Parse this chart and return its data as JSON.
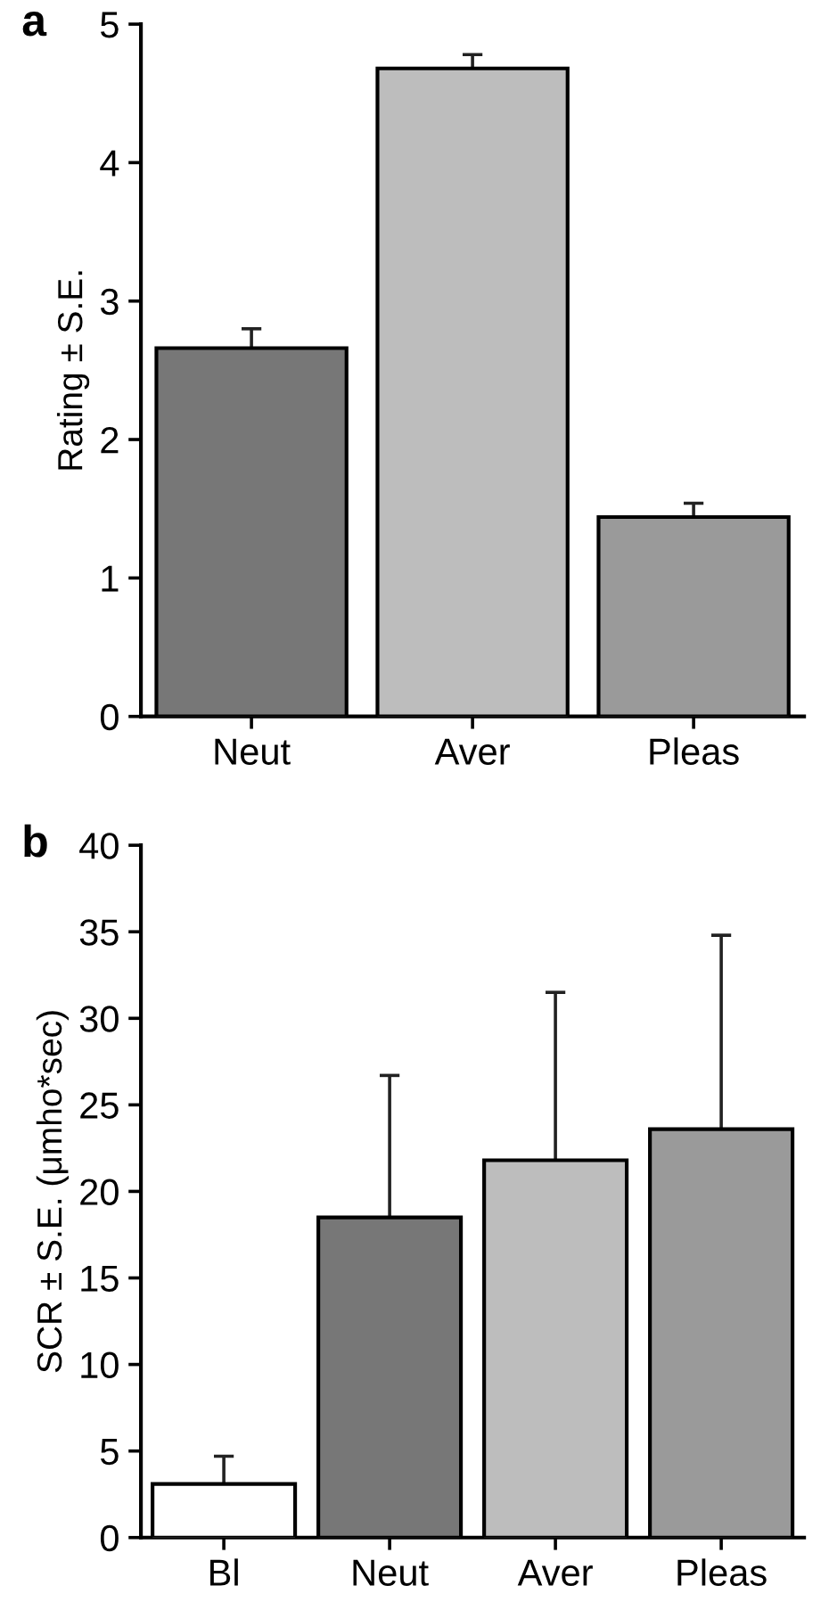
{
  "chart_data": [
    {
      "type": "bar",
      "title": "a",
      "ylabel": "Rating ± S.E.",
      "categories": [
        "Neut",
        "Aver",
        "Pleas"
      ],
      "values": [
        2.66,
        4.68,
        1.44
      ],
      "errors": [
        0.14,
        0.1,
        0.1
      ],
      "colors": [
        "#777777",
        "#bdbdbd",
        "#9a9a9a"
      ],
      "ylim": [
        0,
        5
      ],
      "yticks": [
        0,
        1,
        2,
        3,
        4,
        5
      ]
    },
    {
      "type": "bar",
      "title": "b",
      "ylabel": "SCR ± S.E. (μmho*sec)",
      "categories": [
        "Bl",
        "Neut",
        "Aver",
        "Pleas"
      ],
      "values": [
        3.1,
        18.5,
        21.8,
        23.6
      ],
      "errors": [
        1.6,
        8.2,
        9.7,
        11.2
      ],
      "colors": [
        "#ffffff",
        "#777777",
        "#bdbdbd",
        "#9a9a9a"
      ],
      "ylim": [
        0,
        40
      ],
      "yticks": [
        0,
        5,
        10,
        15,
        20,
        25,
        30,
        35,
        40
      ]
    }
  ]
}
